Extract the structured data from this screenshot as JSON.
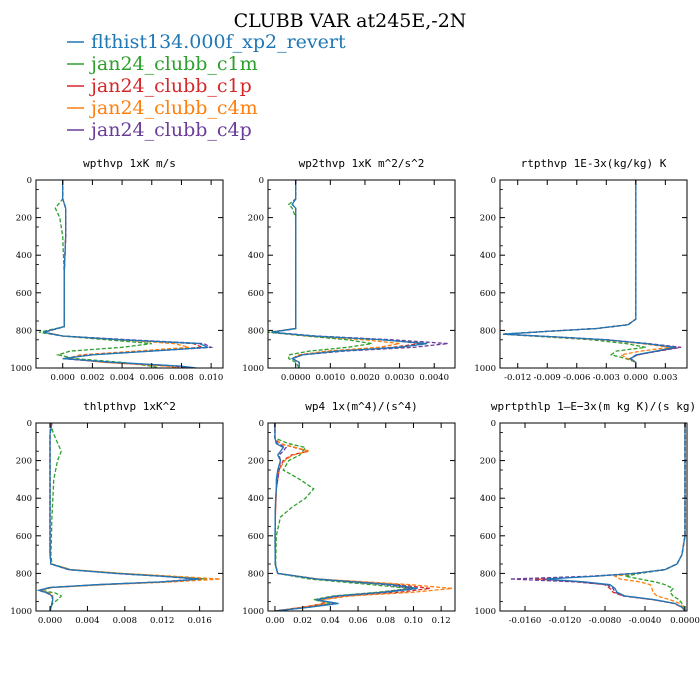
{
  "figure": {
    "title": "CLUBB VAR at245E,-2N",
    "legend": [
      {
        "label": "flthist134.000f_xp2_revert",
        "color": "#1f77b4",
        "dash": "solid"
      },
      {
        "label": "jan24_clubb_c1m",
        "color": "#2ca02c",
        "dash": "dashed"
      },
      {
        "label": "jan24_clubb_c1p",
        "color": "#d62728",
        "dash": "dashed"
      },
      {
        "label": "jan24_clubb_c4m",
        "color": "#ff7f0e",
        "dash": "dashed"
      },
      {
        "label": "jan24_clubb_c4p",
        "color": "#6a3d9a",
        "dash": "dashed"
      }
    ]
  },
  "chart_data": [
    {
      "type": "line",
      "title": "wpthvp  1xK m/s",
      "xlim": [
        -0.0018,
        0.0108
      ],
      "ylim": [
        1000,
        0
      ],
      "xticks": [
        0.0,
        0.002,
        0.004,
        0.006,
        0.008,
        0.01
      ],
      "xticklabels": [
        "0.000",
        "0.002",
        "0.004",
        "0.006",
        "0.008",
        "0.010"
      ],
      "yticks": [
        0,
        200,
        400,
        600,
        800,
        1000
      ],
      "y": [
        0,
        100,
        150,
        200,
        300,
        500,
        700,
        780,
        810,
        830,
        850,
        870,
        890,
        910,
        930,
        950,
        970,
        990,
        1000
      ],
      "series": [
        {
          "values": [
            0.0,
            0.0,
            0.0002,
            0.0002,
            0.0002,
            0.0001,
            0.0001,
            0.0001,
            -0.0013,
            0.0,
            0.004,
            0.0092,
            0.0098,
            0.006,
            0.002,
            0.0,
            0.0035,
            0.008,
            0.009
          ]
        },
        {
          "values": [
            0.0,
            0.0,
            -0.0005,
            -0.0002,
            0.0,
            0.0001,
            0.0001,
            0.0001,
            -0.0016,
            0.0,
            0.003,
            0.006,
            0.004,
            0.0005,
            -0.0003,
            0.0008,
            0.004,
            0.006,
            0.0065
          ]
        },
        {
          "values": [
            0.0,
            0.0,
            0.0002,
            0.0002,
            0.0002,
            0.0001,
            0.0001,
            0.0001,
            -0.0013,
            0.0,
            0.0042,
            0.0088,
            0.0094,
            0.0055,
            0.0015,
            0.0002,
            0.003,
            0.0075,
            0.0085
          ]
        },
        {
          "values": [
            0.0,
            0.0,
            0.0002,
            0.0002,
            0.0002,
            0.0001,
            0.0001,
            0.0001,
            -0.0012,
            0.0,
            0.0038,
            0.0075,
            0.0085,
            0.005,
            0.0012,
            0.0003,
            0.0028,
            0.007,
            0.0078
          ]
        },
        {
          "values": [
            0.0,
            0.0,
            0.0002,
            0.0002,
            0.0002,
            0.0001,
            0.0001,
            0.0001,
            -0.0013,
            0.0,
            0.0045,
            0.0095,
            0.01,
            0.006,
            0.0018,
            0.0,
            0.0032,
            0.0078,
            0.0088
          ]
        }
      ]
    },
    {
      "type": "line",
      "title": "wp2thvp  1xK m^2/s^2",
      "xlim": [
        -0.0008,
        0.0046
      ],
      "ylim": [
        1000,
        0
      ],
      "xticks": [
        0.0,
        0.001,
        0.002,
        0.003,
        0.004
      ],
      "xticklabels": [
        "0.0000",
        "0.0010",
        "0.0020",
        "0.0030",
        "0.0040"
      ],
      "yticks": [
        0,
        200,
        400,
        600,
        800,
        1000
      ],
      "y": [
        0,
        100,
        130,
        150,
        200,
        500,
        700,
        790,
        810,
        830,
        850,
        870,
        890,
        910,
        930,
        950,
        970,
        1000
      ],
      "series": [
        {
          "values": [
            0.0,
            0.0,
            -0.0001,
            0.0,
            0.0,
            0.0,
            0.0,
            0.0,
            -0.0007,
            0.0005,
            0.0025,
            0.0038,
            0.003,
            0.0012,
            0.0002,
            -0.0001,
            0.0001,
            0.0001
          ]
        },
        {
          "values": [
            0.0,
            0.0,
            -0.0002,
            -0.0001,
            0.0,
            0.0,
            0.0,
            0.0,
            -0.0008,
            0.0003,
            0.0015,
            0.0022,
            0.0015,
            0.0004,
            -0.0002,
            -0.0002,
            0.0,
            0.0001
          ]
        },
        {
          "values": [
            0.0,
            0.0,
            -0.0001,
            0.0,
            0.0,
            0.0,
            0.0,
            0.0,
            -0.0007,
            0.0005,
            0.0026,
            0.0036,
            0.0028,
            0.001,
            0.0001,
            -0.0001,
            0.0001,
            0.0001
          ]
        },
        {
          "values": [
            0.0,
            0.0,
            -0.0001,
            0.0,
            0.0,
            0.0,
            0.0,
            0.0,
            -0.0007,
            0.0004,
            0.002,
            0.003,
            0.0024,
            0.0009,
            0.0001,
            -0.0001,
            0.0001,
            0.0001
          ]
        },
        {
          "values": [
            0.0,
            0.0,
            -0.0001,
            0.0,
            0.0,
            0.0,
            0.0,
            0.0,
            -0.0007,
            0.0006,
            0.0028,
            0.0044,
            0.0034,
            0.0014,
            0.0002,
            -0.0001,
            0.0001,
            0.0001
          ]
        }
      ]
    },
    {
      "type": "line",
      "title": "rtpthvp  1E-3x(kg/kg) K",
      "xlim": [
        -0.0138,
        0.0052
      ],
      "ylim": [
        1000,
        0
      ],
      "xticks": [
        -0.012,
        -0.009,
        -0.006,
        -0.003,
        0.0,
        0.003
      ],
      "xticklabels": [
        "-0.012",
        "-0.009",
        "-0.006",
        "-0.003",
        "0.000",
        "0.003"
      ],
      "yticks": [
        0,
        200,
        400,
        600,
        800,
        1000
      ],
      "y": [
        0,
        300,
        600,
        740,
        770,
        790,
        805,
        820,
        835,
        850,
        870,
        890,
        910,
        930,
        950,
        970,
        1000
      ],
      "series": [
        {
          "values": [
            0.0,
            0.0,
            0.0,
            0.0,
            -0.0008,
            -0.004,
            -0.009,
            -0.0135,
            -0.008,
            -0.003,
            0.001,
            0.004,
            0.002,
            0.0,
            -0.0005,
            0.0,
            0.0
          ]
        },
        {
          "values": [
            0.0,
            0.0,
            0.0,
            0.0,
            -0.0008,
            -0.004,
            -0.009,
            -0.0135,
            -0.009,
            -0.0045,
            -0.001,
            0.001,
            -0.002,
            -0.0025,
            -0.001,
            0.0,
            0.0
          ]
        },
        {
          "values": [
            0.0,
            0.0,
            0.0,
            0.0,
            -0.0008,
            -0.004,
            -0.009,
            -0.0135,
            -0.0082,
            -0.003,
            0.0012,
            0.0045,
            0.0022,
            0.0002,
            -0.0006,
            0.0,
            0.0
          ]
        },
        {
          "values": [
            0.0,
            0.0,
            0.0,
            0.0,
            -0.0008,
            -0.004,
            -0.009,
            -0.0135,
            -0.0085,
            -0.0035,
            0.0005,
            0.0035,
            0.0005,
            -0.0015,
            -0.0008,
            0.0,
            0.0
          ]
        },
        {
          "values": [
            0.0,
            0.0,
            0.0,
            0.0,
            -0.0008,
            -0.004,
            -0.009,
            -0.0135,
            -0.008,
            -0.003,
            0.0012,
            0.0046,
            0.0023,
            0.0002,
            -0.0006,
            0.0,
            0.0
          ]
        }
      ]
    },
    {
      "type": "line",
      "title": "thlpthvp  1xK^2",
      "xlim": [
        -0.0015,
        0.0185
      ],
      "ylim": [
        1000,
        0
      ],
      "xticks": [
        0.0,
        0.004,
        0.008,
        0.012,
        0.016
      ],
      "xticklabels": [
        "0.000",
        "0.004",
        "0.008",
        "0.012",
        "0.016"
      ],
      "yticks": [
        0,
        200,
        400,
        600,
        800,
        1000
      ],
      "y": [
        0,
        60,
        150,
        200,
        300,
        500,
        700,
        750,
        780,
        800,
        815,
        830,
        845,
        860,
        875,
        890,
        905,
        920,
        940,
        960,
        980,
        1000
      ],
      "series": [
        {
          "values": [
            0.0002,
            0.0,
            0.0,
            0.0,
            0.0,
            0.0,
            0.0,
            0.0001,
            0.002,
            0.007,
            0.012,
            0.016,
            0.012,
            0.005,
            0.0,
            -0.0012,
            -0.0002,
            0.0002,
            0.0003,
            0.0002,
            0.0001,
            0.0
          ]
        },
        {
          "values": [
            0.0,
            0.0004,
            0.0012,
            0.0008,
            0.0004,
            0.0002,
            0.0001,
            0.0002,
            0.0022,
            0.0075,
            0.0125,
            0.0168,
            0.0125,
            0.0055,
            0.0002,
            -0.0009,
            0.0006,
            0.0012,
            0.0008,
            0.0003,
            0.0001,
            0.0
          ]
        },
        {
          "values": [
            0.0001,
            0.0,
            0.0,
            0.0,
            0.0,
            0.0,
            0.0,
            0.0001,
            0.002,
            0.0072,
            0.0122,
            0.0162,
            0.0122,
            0.0052,
            0.0,
            -0.0011,
            -0.0002,
            0.0002,
            0.0003,
            0.0002,
            0.0001,
            0.0
          ]
        },
        {
          "values": [
            0.0,
            0.0,
            0.0,
            0.0,
            0.0,
            0.0,
            0.0,
            0.0001,
            0.0023,
            0.0078,
            0.0132,
            0.0182,
            0.0132,
            0.0058,
            0.0002,
            -0.001,
            0.0,
            0.0003,
            0.0003,
            0.0002,
            0.0001,
            0.0
          ]
        },
        {
          "values": [
            0.0002,
            0.0,
            0.0,
            0.0,
            0.0,
            0.0,
            0.0,
            0.0001,
            0.002,
            0.0068,
            0.0118,
            0.0158,
            0.0118,
            0.005,
            0.0,
            -0.0012,
            -0.0003,
            0.0002,
            0.0003,
            0.0002,
            0.0001,
            0.0
          ]
        }
      ]
    },
    {
      "type": "line",
      "title": "wp4  1x(m^4)/(s^4)",
      "xlim": [
        -0.005,
        0.13
      ],
      "ylim": [
        1000,
        0
      ],
      "xticks": [
        0.0,
        0.02,
        0.04,
        0.06,
        0.08,
        0.1,
        0.12
      ],
      "xticklabels": [
        "0.00",
        "0.02",
        "0.04",
        "0.06",
        "0.08",
        "0.10",
        "0.12"
      ],
      "yticks": [
        0,
        200,
        400,
        600,
        800,
        1000
      ],
      "y": [
        0,
        80,
        110,
        130,
        150,
        170,
        200,
        250,
        300,
        350,
        400,
        450,
        500,
        600,
        750,
        800,
        830,
        860,
        880,
        900,
        920,
        940,
        960,
        980,
        1000
      ],
      "series": [
        {
          "values": [
            0.0,
            0.0,
            0.001,
            0.006,
            0.004,
            0.002,
            0.004,
            0.002,
            0.001,
            0.001,
            0.0005,
            0.0003,
            0.0002,
            0.0001,
            0.0002,
            0.002,
            0.03,
            0.085,
            0.103,
            0.08,
            0.045,
            0.03,
            0.046,
            0.025,
            0.0
          ]
        },
        {
          "values": [
            0.0,
            0.0,
            0.01,
            0.022,
            0.02,
            0.018,
            0.01,
            0.006,
            0.018,
            0.028,
            0.022,
            0.012,
            0.004,
            0.001,
            0.0005,
            0.002,
            0.025,
            0.07,
            0.098,
            0.075,
            0.042,
            0.028,
            0.04,
            0.022,
            0.0
          ]
        },
        {
          "values": [
            0.0,
            0.0,
            0.004,
            0.014,
            0.024,
            0.012,
            0.006,
            0.003,
            0.002,
            0.001,
            0.0008,
            0.0005,
            0.0003,
            0.0001,
            0.0002,
            0.002,
            0.03,
            0.09,
            0.112,
            0.09,
            0.05,
            0.032,
            0.035,
            0.02,
            0.0
          ]
        },
        {
          "values": [
            0.0,
            0.0,
            0.004,
            0.015,
            0.025,
            0.013,
            0.007,
            0.003,
            0.002,
            0.001,
            0.0008,
            0.0005,
            0.0003,
            0.0001,
            0.0002,
            0.002,
            0.032,
            0.098,
            0.128,
            0.1,
            0.055,
            0.034,
            0.036,
            0.02,
            0.0
          ]
        },
        {
          "values": [
            0.0,
            0.0,
            0.002,
            0.008,
            0.006,
            0.003,
            0.004,
            0.003,
            0.002,
            0.001,
            0.0006,
            0.0004,
            0.0002,
            0.0001,
            0.0002,
            0.002,
            0.03,
            0.08,
            0.1,
            0.078,
            0.044,
            0.03,
            0.044,
            0.024,
            0.0
          ]
        }
      ]
    },
    {
      "type": "line",
      "title": "wprtpthlp  1—E−3x(m kg K)/(s kg)",
      "xlim": [
        -0.0185,
        0.0002
      ],
      "ylim": [
        1000,
        0
      ],
      "xticks": [
        -0.016,
        -0.012,
        -0.008,
        -0.004,
        0.0
      ],
      "xticklabels": [
        "-0.0160",
        "-0.0120",
        "-0.0080",
        "-0.0040",
        "0.0000"
      ],
      "yticks": [
        0,
        200,
        400,
        600,
        800,
        1000
      ],
      "y": [
        0,
        300,
        600,
        700,
        750,
        780,
        800,
        815,
        830,
        845,
        860,
        880,
        900,
        920,
        940,
        960,
        980,
        1000
      ],
      "series": [
        {
          "values": [
            0.0,
            0.0,
            0.0,
            -0.0003,
            -0.0008,
            -0.002,
            -0.005,
            -0.009,
            -0.014,
            -0.01,
            -0.0075,
            -0.007,
            -0.0068,
            -0.006,
            -0.003,
            -0.001,
            -0.0003,
            0.0
          ]
        },
        {
          "values": [
            0.0,
            0.0,
            0.0,
            -0.0003,
            -0.0008,
            -0.002,
            -0.0045,
            -0.006,
            -0.0045,
            -0.003,
            -0.002,
            -0.0012,
            -0.0015,
            -0.0012,
            -0.0006,
            -0.0003,
            -0.0001,
            0.0
          ]
        },
        {
          "values": [
            0.0,
            0.0,
            0.0,
            -0.0003,
            -0.0008,
            -0.002,
            -0.005,
            -0.009,
            -0.015,
            -0.0105,
            -0.008,
            -0.0075,
            -0.0072,
            -0.0062,
            -0.0032,
            -0.0011,
            -0.0003,
            0.0
          ]
        },
        {
          "values": [
            0.0,
            0.0,
            0.0,
            -0.0003,
            -0.0008,
            -0.002,
            -0.005,
            -0.007,
            -0.0065,
            -0.0045,
            -0.0035,
            -0.0033,
            -0.0032,
            -0.0028,
            -0.0015,
            -0.0005,
            -0.0002,
            0.0
          ]
        },
        {
          "values": [
            0.0,
            0.0,
            0.0,
            -0.0003,
            -0.0008,
            -0.002,
            -0.005,
            -0.0095,
            -0.0175,
            -0.011,
            -0.0078,
            -0.0072,
            -0.007,
            -0.0061,
            -0.0031,
            -0.001,
            -0.0003,
            0.0
          ]
        }
      ]
    }
  ]
}
